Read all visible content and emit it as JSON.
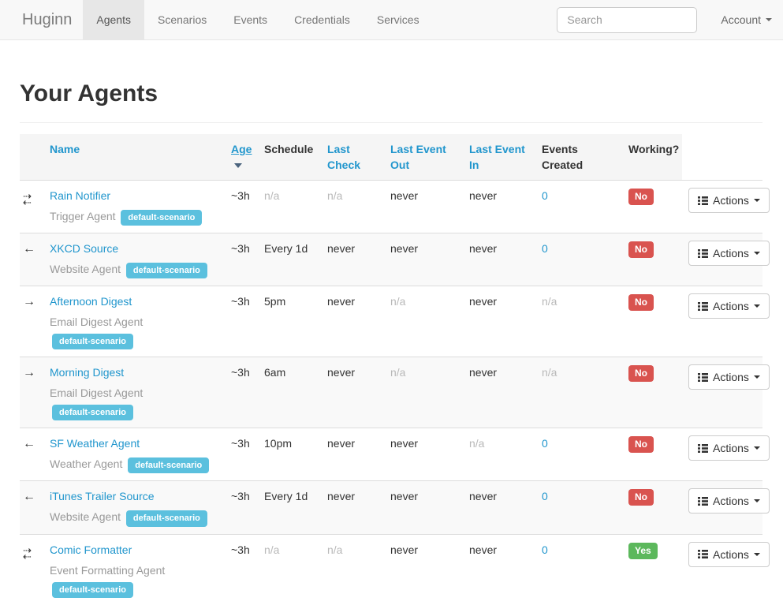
{
  "colors": {
    "link": "#2196cd",
    "scenario_badge": "#5bc0de",
    "status_no": "#d9534f",
    "status_yes": "#5cb85c"
  },
  "navbar": {
    "brand": "Huginn",
    "items": [
      {
        "label": "Agents",
        "active": true
      },
      {
        "label": "Scenarios",
        "active": false
      },
      {
        "label": "Events",
        "active": false
      },
      {
        "label": "Credentials",
        "active": false
      },
      {
        "label": "Services",
        "active": false
      }
    ],
    "search": {
      "placeholder": "Search"
    },
    "account": {
      "label": "Account"
    }
  },
  "page": {
    "title": "Your Agents"
  },
  "agents_table": {
    "columns": [
      {
        "label": "Name",
        "link": true,
        "sorted": false
      },
      {
        "label": "Age",
        "link": true,
        "sorted": true
      },
      {
        "label": "Schedule",
        "link": false,
        "sorted": false
      },
      {
        "label": "Last Check",
        "link": true,
        "sorted": false
      },
      {
        "label": "Last Event Out",
        "link": true,
        "sorted": false
      },
      {
        "label": "Last Event In",
        "link": true,
        "sorted": false
      },
      {
        "label": "Events Created",
        "link": false,
        "sorted": false
      },
      {
        "label": "Working?",
        "link": false,
        "sorted": false
      }
    ],
    "actions_button_label": "Actions",
    "rows": [
      {
        "direction_icon": "transfer-icon",
        "name": "Rain Notifier",
        "type": "Trigger Agent",
        "scenario_badge": "default-scenario",
        "cells": {
          "age": {
            "text": "~3h"
          },
          "schedule": {
            "text": "n/a",
            "muted": true
          },
          "last_check": {
            "text": "n/a",
            "muted": true
          },
          "last_event_out": {
            "text": "never"
          },
          "last_event_in": {
            "text": "never"
          },
          "events_created": {
            "text": "0",
            "link": true
          }
        },
        "working": {
          "text": "No",
          "status": "no"
        }
      },
      {
        "direction_icon": "arrow-left-icon",
        "name": "XKCD Source",
        "type": "Website Agent",
        "scenario_badge": "default-scenario",
        "cells": {
          "age": {
            "text": "~3h"
          },
          "schedule": {
            "text": "Every 1d"
          },
          "last_check": {
            "text": "never"
          },
          "last_event_out": {
            "text": "never"
          },
          "last_event_in": {
            "text": "never"
          },
          "events_created": {
            "text": "0",
            "link": true
          }
        },
        "working": {
          "text": "No",
          "status": "no"
        }
      },
      {
        "direction_icon": "arrow-right-icon",
        "name": "Afternoon Digest",
        "type": "Email Digest Agent",
        "scenario_badge": "default-scenario",
        "cells": {
          "age": {
            "text": "~3h"
          },
          "schedule": {
            "text": "5pm"
          },
          "last_check": {
            "text": "never"
          },
          "last_event_out": {
            "text": "n/a",
            "muted": true
          },
          "last_event_in": {
            "text": "never"
          },
          "events_created": {
            "text": "n/a",
            "muted": true
          }
        },
        "working": {
          "text": "No",
          "status": "no"
        }
      },
      {
        "direction_icon": "arrow-right-icon",
        "name": "Morning Digest",
        "type": "Email Digest Agent",
        "scenario_badge": "default-scenario",
        "cells": {
          "age": {
            "text": "~3h"
          },
          "schedule": {
            "text": "6am"
          },
          "last_check": {
            "text": "never"
          },
          "last_event_out": {
            "text": "n/a",
            "muted": true
          },
          "last_event_in": {
            "text": "never"
          },
          "events_created": {
            "text": "n/a",
            "muted": true
          }
        },
        "working": {
          "text": "No",
          "status": "no"
        }
      },
      {
        "direction_icon": "arrow-left-icon",
        "name": "SF Weather Agent",
        "type": "Weather Agent",
        "scenario_badge": "default-scenario",
        "cells": {
          "age": {
            "text": "~3h"
          },
          "schedule": {
            "text": "10pm"
          },
          "last_check": {
            "text": "never"
          },
          "last_event_out": {
            "text": "never"
          },
          "last_event_in": {
            "text": "n/a",
            "muted": true
          },
          "events_created": {
            "text": "0",
            "link": true
          }
        },
        "working": {
          "text": "No",
          "status": "no"
        }
      },
      {
        "direction_icon": "arrow-left-icon",
        "name": "iTunes Trailer Source",
        "type": "Website Agent",
        "scenario_badge": "default-scenario",
        "cells": {
          "age": {
            "text": "~3h"
          },
          "schedule": {
            "text": "Every 1d"
          },
          "last_check": {
            "text": "never"
          },
          "last_event_out": {
            "text": "never"
          },
          "last_event_in": {
            "text": "never"
          },
          "events_created": {
            "text": "0",
            "link": true
          }
        },
        "working": {
          "text": "No",
          "status": "no"
        }
      },
      {
        "direction_icon": "transfer-icon",
        "name": "Comic Formatter",
        "type": "Event Formatting Agent",
        "scenario_badge": "default-scenario",
        "cells": {
          "age": {
            "text": "~3h"
          },
          "schedule": {
            "text": "n/a",
            "muted": true
          },
          "last_check": {
            "text": "n/a",
            "muted": true
          },
          "last_event_out": {
            "text": "never"
          },
          "last_event_in": {
            "text": "never"
          },
          "events_created": {
            "text": "0",
            "link": true
          }
        },
        "working": {
          "text": "Yes",
          "status": "yes"
        }
      }
    ]
  }
}
